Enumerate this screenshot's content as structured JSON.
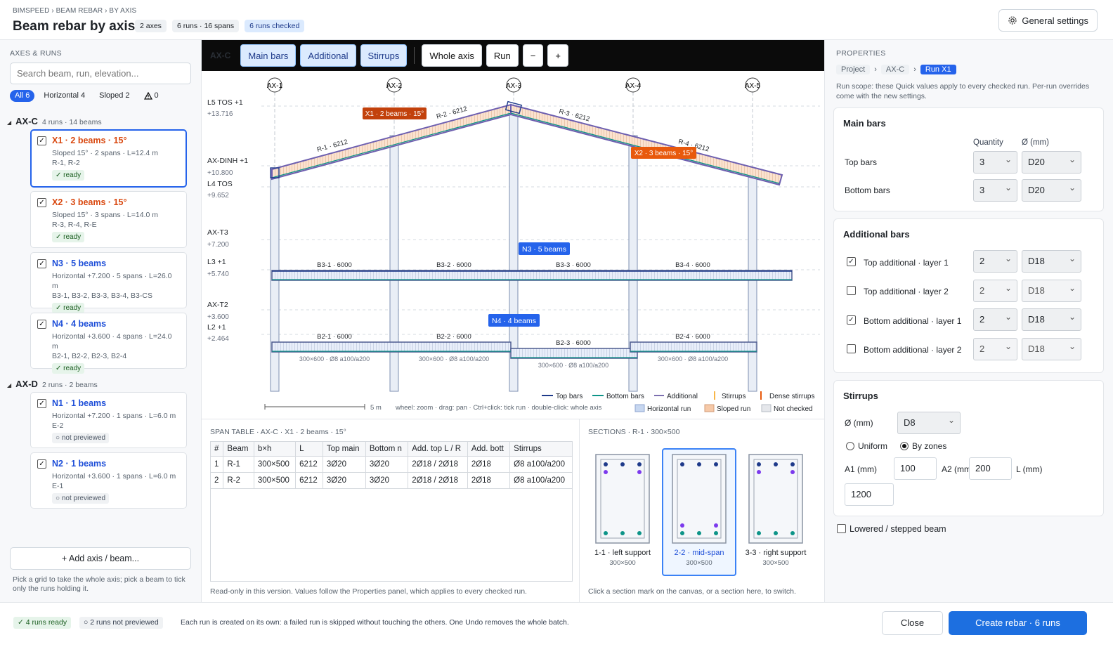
{
  "header": {
    "breadcrumb": "BIMSPEED › BEAM REBAR › BY AXIS",
    "title": "Beam rebar by axis",
    "chips": [
      "2 axes",
      "6 runs · 16 spans",
      "6 runs checked"
    ],
    "settings_label": "General settings",
    "settings_icon": "gear-icon"
  },
  "left": {
    "section_label": "AXES & RUNS",
    "search_placeholder": "Search beam, run, elevation...",
    "filters": {
      "all": "All 6",
      "horizontal": "Horizontal 4",
      "sloped": "Sloped 2",
      "warn": "0"
    },
    "groups": [
      {
        "name": "AX-C",
        "sub": "4 runs · 14 beams"
      },
      {
        "name": "AX-D",
        "sub": "2 runs · 2 beams"
      }
    ],
    "runs": [
      {
        "title": "X1 · 2 beams · 15°",
        "line1": "Sloped 15° · 2 spans · L=12.4 m",
        "line2": "R-1, R-2",
        "status": "✓ ready"
      },
      {
        "title": "X2 · 3 beams · 15°",
        "line1": "Sloped 15° · 3 spans · L=14.0 m",
        "line2": "R-3, R-4, R-E",
        "status": "✓ ready"
      },
      {
        "title": "N3 · 5 beams",
        "line1": "Horizontal +7.200 · 5 spans · L=26.0 m",
        "line2": "B3-1, B3-2, B3-3, B3-4, B3-CS",
        "status": "✓ ready"
      },
      {
        "title": "N4 · 4 beams",
        "line1": "Horizontal +3.600 · 4 spans · L=24.0 m",
        "line2": "B2-1, B2-2, B2-3, B2-4",
        "status": "✓ ready"
      },
      {
        "title": "N1 · 1 beams",
        "line1": "Horizontal +7.200 · 1 spans · L=6.0 m",
        "line2": "E-2",
        "status": "not previewed"
      },
      {
        "title": "N2 · 1 beams",
        "line1": "Horizontal +3.600 · 1 spans · L=6.0 m",
        "line2": "E-1",
        "status": "not previewed"
      }
    ],
    "add_button": "+ Add axis / beam...",
    "hint": "Pick a grid to take the whole axis; pick a beam to tick only the runs holding it."
  },
  "toolbar": {
    "axis": "AX-C",
    "main_bars": "Main bars",
    "additional": "Additional",
    "stirrups": "Stirrups",
    "whole_axis": "Whole axis",
    "run": "Run",
    "minus": "−",
    "plus": "+"
  },
  "canvas": {
    "grids": [
      "AX-1",
      "AX-2",
      "AX-3",
      "AX-4",
      "AX-5"
    ],
    "levels": [
      {
        "name": "L5 TOS  +1",
        "elev": "+13.716"
      },
      {
        "name": "AX-DINH  +1",
        "elev": "+10.800"
      },
      {
        "name": "L4 TOS",
        "elev": "+9.652"
      },
      {
        "name": "AX-T3",
        "elev": "+7.200"
      },
      {
        "name": "L3  +1",
        "elev": "+5.740"
      },
      {
        "name": "AX-T2",
        "elev": "+3.600"
      },
      {
        "name": "L2  +1",
        "elev": "+2.464"
      }
    ],
    "tags": {
      "x1": "X1 · 2 beams · 15°",
      "x2": "X2 · 3 beams · 15°",
      "n3": "N3 · 5 beams",
      "n4": "N4 · 4 beams"
    },
    "roof_labels": [
      "R-1 · 6212",
      "R-2 · 6212",
      "R-3 · 6212",
      "R-4 · 6212"
    ],
    "upper_beams": [
      "B3-1 · 6000",
      "B3-2 · 6000",
      "B3-3 · 6000",
      "B3-4 · 6000"
    ],
    "lower_beams": [
      "B2-1 · 6000",
      "B2-2 · 6000",
      "B2-3 · 6000",
      "B2-4 · 6000"
    ],
    "section_notes": [
      "300×600 · Ø8 a100/a200",
      "300×600 · Ø8 a100/a200",
      "300×600 · Ø8 a100/a200",
      "300×600 · Ø8 a100/a200"
    ],
    "legend": [
      "Top bars",
      "Bottom bars",
      "Additional",
      "Stirrups",
      "Dense stirrups"
    ],
    "legend2": [
      "Horizontal run",
      "Sloped run",
      "Not checked"
    ],
    "scale": "5 m",
    "help": "wheel: zoom · drag: pan · Ctrl+click: tick run · double-click: whole axis",
    "colors": {
      "top": "#1e3a8a",
      "bottom": "#0d9488",
      "additional": "#7c6fb0",
      "stirrup": "#f59e0b",
      "sloped": "#f6c9a8",
      "horizontal": "#c7d7f0",
      "tag_orange": "#e8590c",
      "tag_brown": "#c2410c",
      "tag_blue": "#2563eb"
    }
  },
  "span_table": {
    "label": "SPAN TABLE · AX-C · X1 · 2 beams · 15°",
    "headers": [
      "#",
      "Beam",
      "b×h",
      "L",
      "Top main",
      "Bottom n",
      "Add. top L / R",
      "Add. bott",
      "Stirrups"
    ],
    "rows": [
      [
        "1",
        "R-1",
        "300×500",
        "6212",
        "3Ø20",
        "3Ø20",
        "2Ø18 / 2Ø18",
        "2Ø18",
        "Ø8 a100/a200"
      ],
      [
        "2",
        "R-2",
        "300×500",
        "6212",
        "3Ø20",
        "3Ø20",
        "2Ø18 / 2Ø18",
        "2Ø18",
        "Ø8 a100/a200"
      ]
    ],
    "footnote": "Read-only in this version. Values follow the Properties panel, which applies to every checked run."
  },
  "sections": {
    "label": "SECTIONS · R-1 · 300×500",
    "items": [
      {
        "name": "1-1 · left support",
        "dim": "300×500"
      },
      {
        "name": "2-2 · mid-span",
        "dim": "300×500"
      },
      {
        "name": "3-3 · right support",
        "dim": "300×500"
      }
    ],
    "footnote": "Click a section mark on the canvas, or a section here, to switch."
  },
  "properties": {
    "label": "PROPERTIES",
    "crumbs": [
      "Project",
      "AX-C",
      "Run X1"
    ],
    "scope": "Run scope: these Quick values apply to every checked run. Per-run overrides come with the new settings.",
    "main": {
      "title": "Main bars",
      "qty_hdr": "Quantity",
      "dia_hdr": "Ø (mm)",
      "rows": [
        {
          "label": "Top bars",
          "qty": "3",
          "dia": "D20"
        },
        {
          "label": "Bottom bars",
          "qty": "3",
          "dia": "D20"
        }
      ]
    },
    "additional": {
      "title": "Additional bars",
      "rows": [
        {
          "label": "Top additional · layer 1",
          "checked": true,
          "qty": "2",
          "dia": "D18"
        },
        {
          "label": "Top additional · layer 2",
          "checked": false,
          "qty": "2",
          "dia": "D18"
        },
        {
          "label": "Bottom additional · layer 1",
          "checked": true,
          "qty": "2",
          "dia": "D18"
        },
        {
          "label": "Bottom additional · layer 2",
          "checked": false,
          "qty": "2",
          "dia": "D18"
        }
      ]
    },
    "stirrups": {
      "title": "Stirrups",
      "dia_label": "Ø (mm)",
      "dia": "D8",
      "uniform": "Uniform",
      "zones": "By zones",
      "a1_label": "A1 (mm)",
      "a1": "100",
      "a2_label": "A2 (mm)",
      "a2": "200",
      "l_label": "L (mm)",
      "l": "1200"
    },
    "lowered": "Lowered / stepped beam"
  },
  "footer": {
    "ready": "✓ 4 runs ready",
    "not_prev": "2 runs not previewed",
    "note": "Each run is created on its own: a failed run is skipped without touching the others. One Undo removes the whole batch.",
    "close": "Close",
    "create": "Create rebar · 6 runs"
  }
}
